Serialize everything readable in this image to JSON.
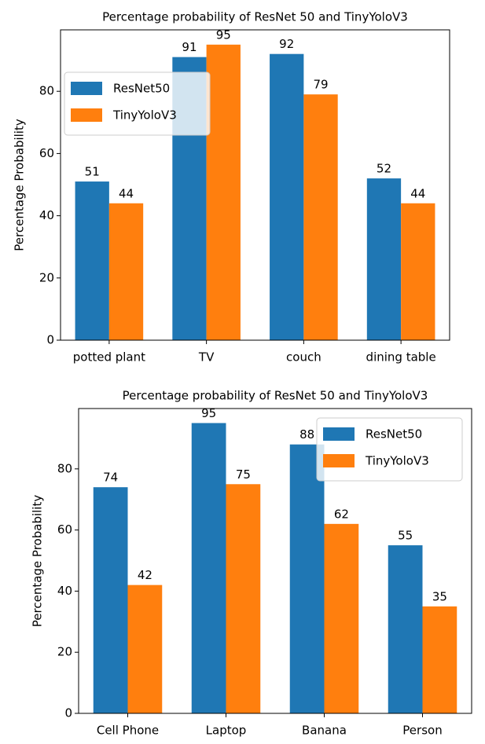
{
  "chart_data": [
    {
      "type": "bar",
      "title": "Percentage probability of ResNet 50 and TinyYoloV3",
      "ylabel": "Percentage Probability",
      "categories": [
        "potted plant",
        "TV",
        "couch",
        "dining table"
      ],
      "series": [
        {
          "name": "ResNet50",
          "color": "#1f77b4",
          "values": [
            51,
            91,
            92,
            52
          ]
        },
        {
          "name": "TinyYoloV3",
          "color": "#ff7f0e",
          "values": [
            44,
            95,
            79,
            44
          ]
        }
      ],
      "ylim": [
        0,
        99.75
      ],
      "yticks": [
        0,
        20,
        40,
        60,
        80
      ],
      "legend": "upper left"
    },
    {
      "type": "bar",
      "title": "Percentage probability of ResNet 50 and TinyYoloV3",
      "ylabel": "Percentage Probability",
      "categories": [
        "Cell Phone",
        "Laptop",
        "Banana",
        "Person"
      ],
      "series": [
        {
          "name": "ResNet50",
          "color": "#1f77b4",
          "values": [
            74,
            95,
            88,
            55
          ]
        },
        {
          "name": "TinyYoloV3",
          "color": "#ff7f0e",
          "values": [
            42,
            75,
            62,
            35
          ]
        }
      ],
      "ylim": [
        0,
        99.75
      ],
      "yticks": [
        0,
        20,
        40,
        60,
        80
      ],
      "legend": "upper right"
    }
  ]
}
